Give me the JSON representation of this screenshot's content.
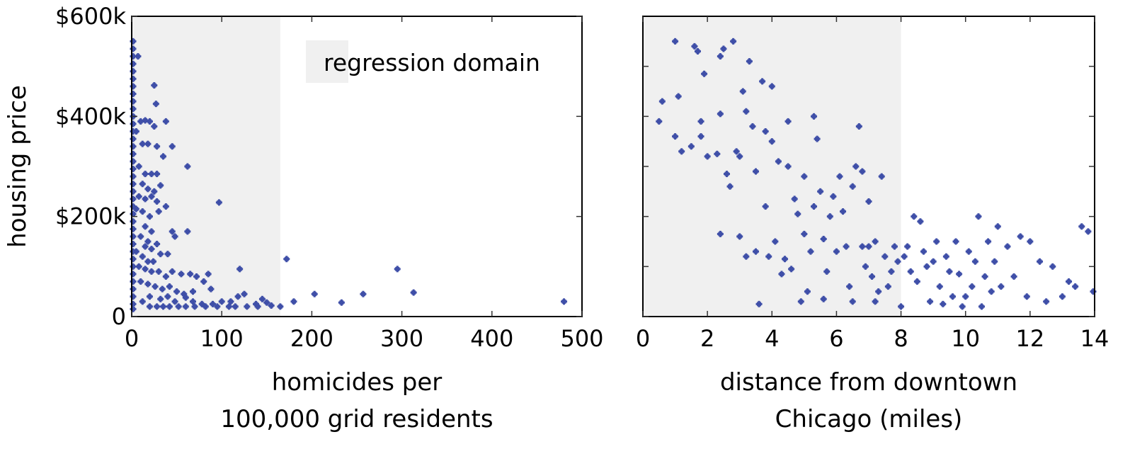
{
  "chart_data": [
    {
      "type": "scatter",
      "title": "",
      "xlabel_lines": [
        "homicides per",
        "100,000 grid residents"
      ],
      "ylabel": "housing price",
      "xlim": [
        0,
        500
      ],
      "ylim": [
        0,
        600000
      ],
      "xticks": [
        0,
        100,
        200,
        300,
        400,
        500
      ],
      "xtick_labels": [
        "0",
        "100",
        "200",
        "300",
        "400",
        "500"
      ],
      "yticks": [
        0,
        200000,
        400000,
        600000
      ],
      "ytick_labels": [
        "0",
        "$200k",
        "$400k",
        "$600k"
      ],
      "grid": false,
      "legend": {
        "label": "regression domain",
        "placement": "top-right"
      },
      "regression_domain": [
        0,
        165
      ],
      "point_color": "#3f4fa8",
      "shade_color": "#f0f0f0",
      "points": [
        [
          0,
          550000
        ],
        [
          0,
          535000
        ],
        [
          0,
          520000
        ],
        [
          0,
          505000
        ],
        [
          0,
          490000
        ],
        [
          0,
          475000
        ],
        [
          0,
          460000
        ],
        [
          0,
          445000
        ],
        [
          0,
          430000
        ],
        [
          0,
          415000
        ],
        [
          0,
          400000
        ],
        [
          0,
          385000
        ],
        [
          0,
          370000
        ],
        [
          0,
          355000
        ],
        [
          0,
          340000
        ],
        [
          0,
          325000
        ],
        [
          0,
          310000
        ],
        [
          0,
          295000
        ],
        [
          0,
          280000
        ],
        [
          0,
          265000
        ],
        [
          0,
          250000
        ],
        [
          0,
          235000
        ],
        [
          0,
          220000
        ],
        [
          0,
          205000
        ],
        [
          0,
          190000
        ],
        [
          0,
          175000
        ],
        [
          0,
          160000
        ],
        [
          0,
          145000
        ],
        [
          0,
          130000
        ],
        [
          0,
          115000
        ],
        [
          0,
          100000
        ],
        [
          0,
          85000
        ],
        [
          0,
          70000
        ],
        [
          0,
          55000
        ],
        [
          0,
          40000
        ],
        [
          0,
          25000
        ],
        [
          0,
          15000
        ],
        [
          7,
          520000
        ],
        [
          25,
          462000
        ],
        [
          27,
          425000
        ],
        [
          10,
          390000
        ],
        [
          15,
          392000
        ],
        [
          20,
          390000
        ],
        [
          25,
          380000
        ],
        [
          38,
          390000
        ],
        [
          45,
          340000
        ],
        [
          5,
          370000
        ],
        [
          12,
          345000
        ],
        [
          18,
          345000
        ],
        [
          28,
          340000
        ],
        [
          35,
          320000
        ],
        [
          8,
          300000
        ],
        [
          15,
          285000
        ],
        [
          22,
          285000
        ],
        [
          28,
          285000
        ],
        [
          62,
          300000
        ],
        [
          12,
          265000
        ],
        [
          18,
          255000
        ],
        [
          25,
          250000
        ],
        [
          32,
          262000
        ],
        [
          8,
          240000
        ],
        [
          15,
          235000
        ],
        [
          22,
          240000
        ],
        [
          28,
          230000
        ],
        [
          5,
          215000
        ],
        [
          12,
          210000
        ],
        [
          20,
          200000
        ],
        [
          30,
          210000
        ],
        [
          38,
          220000
        ],
        [
          15,
          180000
        ],
        [
          22,
          170000
        ],
        [
          45,
          170000
        ],
        [
          48,
          160000
        ],
        [
          62,
          170000
        ],
        [
          10,
          160000
        ],
        [
          18,
          150000
        ],
        [
          28,
          145000
        ],
        [
          15,
          140000
        ],
        [
          22,
          135000
        ],
        [
          32,
          125000
        ],
        [
          40,
          125000
        ],
        [
          5,
          130000
        ],
        [
          12,
          120000
        ],
        [
          18,
          110000
        ],
        [
          24,
          110000
        ],
        [
          8,
          100000
        ],
        [
          15,
          95000
        ],
        [
          22,
          90000
        ],
        [
          30,
          90000
        ],
        [
          38,
          80000
        ],
        [
          45,
          90000
        ],
        [
          55,
          85000
        ],
        [
          65,
          85000
        ],
        [
          72,
          80000
        ],
        [
          80,
          70000
        ],
        [
          85,
          85000
        ],
        [
          10,
          70000
        ],
        [
          18,
          65000
        ],
        [
          26,
          60000
        ],
        [
          34,
          55000
        ],
        [
          42,
          60000
        ],
        [
          50,
          50000
        ],
        [
          58,
          45000
        ],
        [
          68,
          50000
        ],
        [
          88,
          55000
        ],
        [
          20,
          40000
        ],
        [
          32,
          35000
        ],
        [
          40,
          40000
        ],
        [
          48,
          30000
        ],
        [
          60,
          38000
        ],
        [
          68,
          30000
        ],
        [
          78,
          25000
        ],
        [
          90,
          25000
        ],
        [
          100,
          30000
        ],
        [
          110,
          30000
        ],
        [
          118,
          40000
        ],
        [
          125,
          45000
        ],
        [
          138,
          25000
        ],
        [
          145,
          35000
        ],
        [
          150,
          28000
        ],
        [
          155,
          22000
        ],
        [
          12,
          30000
        ],
        [
          20,
          20000
        ],
        [
          28,
          20000
        ],
        [
          35,
          20000
        ],
        [
          42,
          20000
        ],
        [
          52,
          20000
        ],
        [
          60,
          20000
        ],
        [
          70,
          20000
        ],
        [
          82,
          20000
        ],
        [
          95,
          20000
        ],
        [
          108,
          20000
        ],
        [
          115,
          20000
        ],
        [
          128,
          20000
        ],
        [
          140,
          20000
        ],
        [
          97,
          228000
        ],
        [
          120,
          95000
        ],
        [
          165,
          20000
        ],
        [
          172,
          115000
        ],
        [
          180,
          30000
        ],
        [
          203,
          45000
        ],
        [
          233,
          28000
        ],
        [
          257,
          45000
        ],
        [
          295,
          95000
        ],
        [
          313,
          48000
        ],
        [
          480,
          30000
        ]
      ]
    },
    {
      "type": "scatter",
      "title": "",
      "xlabel_lines": [
        "distance from downtown",
        "Chicago (miles)"
      ],
      "ylabel": "",
      "xlim": [
        0,
        14
      ],
      "ylim": [
        0,
        600000
      ],
      "xticks": [
        0,
        2,
        4,
        6,
        8,
        10,
        12,
        14
      ],
      "xtick_labels": [
        "0",
        "2",
        "4",
        "6",
        "8",
        "10",
        "12",
        "14"
      ],
      "yticks": [
        0,
        100000,
        200000,
        300000,
        400000,
        500000
      ],
      "ytick_labels": [],
      "grid": false,
      "regression_domain": [
        0,
        8
      ],
      "point_color": "#3f4fa8",
      "shade_color": "#f0f0f0",
      "points": [
        [
          0.5,
          390000
        ],
        [
          0.6,
          430000
        ],
        [
          1.0,
          550000
        ],
        [
          1.1,
          440000
        ],
        [
          1.2,
          330000
        ],
        [
          1.0,
          360000
        ],
        [
          1.5,
          340000
        ],
        [
          1.6,
          540000
        ],
        [
          1.7,
          530000
        ],
        [
          1.8,
          360000
        ],
        [
          1.8,
          390000
        ],
        [
          1.9,
          485000
        ],
        [
          2.0,
          320000
        ],
        [
          2.3,
          325000
        ],
        [
          2.4,
          405000
        ],
        [
          2.4,
          165000
        ],
        [
          2.4,
          520000
        ],
        [
          2.5,
          535000
        ],
        [
          2.6,
          285000
        ],
        [
          2.7,
          260000
        ],
        [
          2.8,
          550000
        ],
        [
          2.9,
          330000
        ],
        [
          3.0,
          320000
        ],
        [
          3.0,
          160000
        ],
        [
          3.1,
          450000
        ],
        [
          3.2,
          120000
        ],
        [
          3.2,
          410000
        ],
        [
          3.3,
          510000
        ],
        [
          3.4,
          380000
        ],
        [
          3.5,
          290000
        ],
        [
          3.5,
          130000
        ],
        [
          3.6,
          25000
        ],
        [
          3.7,
          470000
        ],
        [
          3.8,
          370000
        ],
        [
          3.8,
          220000
        ],
        [
          3.9,
          120000
        ],
        [
          4.0,
          460000
        ],
        [
          4.0,
          350000
        ],
        [
          4.1,
          150000
        ],
        [
          4.2,
          310000
        ],
        [
          4.3,
          85000
        ],
        [
          4.4,
          115000
        ],
        [
          4.5,
          390000
        ],
        [
          4.5,
          300000
        ],
        [
          4.6,
          95000
        ],
        [
          4.7,
          235000
        ],
        [
          4.8,
          205000
        ],
        [
          4.9,
          30000
        ],
        [
          5.0,
          280000
        ],
        [
          5.0,
          165000
        ],
        [
          5.1,
          50000
        ],
        [
          5.2,
          130000
        ],
        [
          5.3,
          400000
        ],
        [
          5.3,
          220000
        ],
        [
          5.4,
          355000
        ],
        [
          5.5,
          250000
        ],
        [
          5.6,
          155000
        ],
        [
          5.6,
          35000
        ],
        [
          5.7,
          90000
        ],
        [
          5.8,
          200000
        ],
        [
          5.9,
          240000
        ],
        [
          6.0,
          130000
        ],
        [
          6.1,
          280000
        ],
        [
          6.2,
          210000
        ],
        [
          6.3,
          140000
        ],
        [
          6.4,
          60000
        ],
        [
          6.5,
          260000
        ],
        [
          6.5,
          30000
        ],
        [
          6.6,
          300000
        ],
        [
          6.7,
          380000
        ],
        [
          6.8,
          290000
        ],
        [
          6.8,
          140000
        ],
        [
          6.9,
          100000
        ],
        [
          7.0,
          230000
        ],
        [
          7.0,
          140000
        ],
        [
          7.1,
          80000
        ],
        [
          7.2,
          150000
        ],
        [
          7.2,
          30000
        ],
        [
          7.3,
          50000
        ],
        [
          7.4,
          280000
        ],
        [
          7.5,
          120000
        ],
        [
          7.6,
          60000
        ],
        [
          7.7,
          90000
        ],
        [
          7.8,
          140000
        ],
        [
          7.9,
          110000
        ],
        [
          8.0,
          20000
        ],
        [
          8.1,
          120000
        ],
        [
          8.2,
          140000
        ],
        [
          8.3,
          90000
        ],
        [
          8.4,
          200000
        ],
        [
          8.5,
          70000
        ],
        [
          8.6,
          190000
        ],
        [
          8.7,
          130000
        ],
        [
          8.8,
          100000
        ],
        [
          8.9,
          30000
        ],
        [
          9.0,
          110000
        ],
        [
          9.1,
          150000
        ],
        [
          9.2,
          60000
        ],
        [
          9.3,
          25000
        ],
        [
          9.4,
          120000
        ],
        [
          9.5,
          90000
        ],
        [
          9.6,
          40000
        ],
        [
          9.7,
          150000
        ],
        [
          9.8,
          85000
        ],
        [
          9.9,
          20000
        ],
        [
          10.0,
          40000
        ],
        [
          10.1,
          130000
        ],
        [
          10.2,
          60000
        ],
        [
          10.3,
          110000
        ],
        [
          10.4,
          200000
        ],
        [
          10.5,
          20000
        ],
        [
          10.6,
          80000
        ],
        [
          10.7,
          150000
        ],
        [
          10.8,
          50000
        ],
        [
          10.9,
          110000
        ],
        [
          11.0,
          180000
        ],
        [
          11.1,
          60000
        ],
        [
          11.3,
          140000
        ],
        [
          11.5,
          80000
        ],
        [
          11.7,
          160000
        ],
        [
          11.9,
          40000
        ],
        [
          12.0,
          150000
        ],
        [
          12.3,
          110000
        ],
        [
          12.5,
          30000
        ],
        [
          12.7,
          100000
        ],
        [
          13.0,
          40000
        ],
        [
          13.2,
          70000
        ],
        [
          13.4,
          60000
        ],
        [
          13.6,
          180000
        ],
        [
          13.8,
          170000
        ],
        [
          14.0,
          50000
        ]
      ]
    }
  ]
}
